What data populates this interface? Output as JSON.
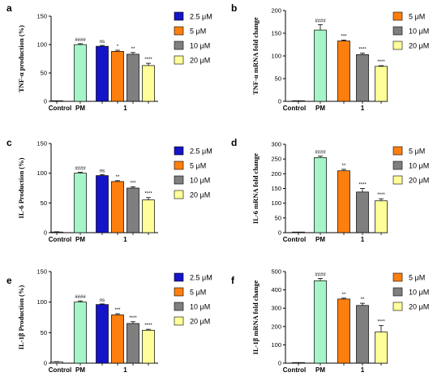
{
  "colors": {
    "PM": "#a5f5c8",
    "2.5 μM": "#1414c8",
    "5 μM": "#ff7f0e",
    "10 μM": "#7f7f7f",
    "20 μM": "#ffff99"
  },
  "chart_data": [
    {
      "panel": "a",
      "type": "bar",
      "ylabel": "TNF-α production (%)",
      "ylim": [
        0,
        150
      ],
      "yticks": [
        0,
        50,
        100,
        150
      ],
      "categories": [
        "Control",
        "PM",
        "1"
      ],
      "legend": [
        "2.5 μM",
        "5 μM",
        "10 μM",
        "20 μM"
      ],
      "bars": [
        {
          "group": "Control",
          "series": "Control",
          "value": 0,
          "error": 0,
          "sig": ""
        },
        {
          "group": "PM",
          "series": "PM",
          "value": 100,
          "error": 1.5,
          "sig": "####"
        },
        {
          "group": "1",
          "series": "2.5 μM",
          "value": 97,
          "error": 1.5,
          "sig": "ns"
        },
        {
          "group": "1",
          "series": "5 μM",
          "value": 88,
          "error": 2,
          "sig": "*"
        },
        {
          "group": "1",
          "series": "10 μM",
          "value": 83,
          "error": 3,
          "sig": "**"
        },
        {
          "group": "1",
          "series": "20 μM",
          "value": 63,
          "error": 4,
          "sig": "****"
        }
      ]
    },
    {
      "panel": "b",
      "type": "bar",
      "ylabel": "TNF-α mRNA fold change",
      "ylim": [
        0,
        200
      ],
      "yticks": [
        0,
        50,
        100,
        150,
        200
      ],
      "categories": [
        "Control",
        "PM",
        "1"
      ],
      "legend": [
        "5 μM",
        "10 μM",
        "20 μM"
      ],
      "bars": [
        {
          "group": "Control",
          "series": "Control",
          "value": 0,
          "error": 0,
          "sig": ""
        },
        {
          "group": "PM",
          "series": "PM",
          "value": 157,
          "error": 12,
          "sig": "####"
        },
        {
          "group": "1",
          "series": "5 μM",
          "value": 133,
          "error": 2,
          "sig": "***"
        },
        {
          "group": "1",
          "series": "10 μM",
          "value": 103,
          "error": 3,
          "sig": "****"
        },
        {
          "group": "1",
          "series": "20 μM",
          "value": 77,
          "error": 1.5,
          "sig": "****"
        }
      ]
    },
    {
      "panel": "c",
      "type": "bar",
      "ylabel": "IL-6 Production (%)",
      "ylim": [
        0,
        150
      ],
      "yticks": [
        0,
        50,
        100,
        150
      ],
      "categories": [
        "Control",
        "PM",
        "1"
      ],
      "legend": [
        "2.5 μM",
        "5 μM",
        "10 μM",
        "20 μM"
      ],
      "bars": [
        {
          "group": "Control",
          "series": "Control",
          "value": 1,
          "error": 0.5,
          "sig": ""
        },
        {
          "group": "PM",
          "series": "PM",
          "value": 100,
          "error": 1.5,
          "sig": "####"
        },
        {
          "group": "1",
          "series": "2.5 μM",
          "value": 96,
          "error": 1.5,
          "sig": "ns"
        },
        {
          "group": "1",
          "series": "5 μM",
          "value": 86,
          "error": 1.5,
          "sig": "**"
        },
        {
          "group": "1",
          "series": "10 μM",
          "value": 75,
          "error": 2,
          "sig": "***"
        },
        {
          "group": "1",
          "series": "20 μM",
          "value": 55,
          "error": 4,
          "sig": "****"
        }
      ]
    },
    {
      "panel": "d",
      "type": "bar",
      "ylabel": "IL-6 mRNA fold change",
      "ylim": [
        0,
        300
      ],
      "yticks": [
        0,
        50,
        100,
        150,
        200,
        250,
        300
      ],
      "categories": [
        "Control",
        "PM",
        "1"
      ],
      "legend": [
        "5 μM",
        "10 μM",
        "20 μM"
      ],
      "bars": [
        {
          "group": "Control",
          "series": "Control",
          "value": 0,
          "error": 0,
          "sig": ""
        },
        {
          "group": "PM",
          "series": "PM",
          "value": 255,
          "error": 5,
          "sig": "####"
        },
        {
          "group": "1",
          "series": "5 μM",
          "value": 210,
          "error": 5,
          "sig": "**"
        },
        {
          "group": "1",
          "series": "10 μM",
          "value": 138,
          "error": 12,
          "sig": "****"
        },
        {
          "group": "1",
          "series": "20 μM",
          "value": 108,
          "error": 7,
          "sig": "****"
        }
      ]
    },
    {
      "panel": "e",
      "type": "bar",
      "ylabel": "IL-1β Production (%)",
      "ylim": [
        0,
        150
      ],
      "yticks": [
        0,
        50,
        100,
        150
      ],
      "categories": [
        "Control",
        "PM",
        "1"
      ],
      "legend": [
        "2.5 μM",
        "5 μM",
        "10 μM",
        "20 μM"
      ],
      "bars": [
        {
          "group": "Control",
          "series": "Control",
          "value": 2,
          "error": 0.5,
          "sig": ""
        },
        {
          "group": "PM",
          "series": "PM",
          "value": 100,
          "error": 2,
          "sig": "####"
        },
        {
          "group": "1",
          "series": "2.5 μM",
          "value": 96,
          "error": 1,
          "sig": "ns"
        },
        {
          "group": "1",
          "series": "5 μM",
          "value": 79,
          "error": 2,
          "sig": "***"
        },
        {
          "group": "1",
          "series": "10 μM",
          "value": 65,
          "error": 3,
          "sig": "****"
        },
        {
          "group": "1",
          "series": "20 μM",
          "value": 54,
          "error": 1.5,
          "sig": "****"
        }
      ]
    },
    {
      "panel": "f",
      "type": "bar",
      "ylabel": "IL-1β mRNA fold change",
      "ylim": [
        0,
        500
      ],
      "yticks": [
        0,
        100,
        200,
        300,
        400,
        500
      ],
      "categories": [
        "Control",
        "PM",
        "1"
      ],
      "legend": [
        "5 μM",
        "10 μM",
        "20 μM"
      ],
      "bars": [
        {
          "group": "Control",
          "series": "Control",
          "value": 0,
          "error": 0,
          "sig": ""
        },
        {
          "group": "PM",
          "series": "PM",
          "value": 450,
          "error": 12,
          "sig": "####"
        },
        {
          "group": "1",
          "series": "5 μM",
          "value": 350,
          "error": 5,
          "sig": "**"
        },
        {
          "group": "1",
          "series": "10 μM",
          "value": 315,
          "error": 12,
          "sig": "**"
        },
        {
          "group": "1",
          "series": "20 μM",
          "value": 170,
          "error": 35,
          "sig": "****"
        }
      ]
    }
  ]
}
